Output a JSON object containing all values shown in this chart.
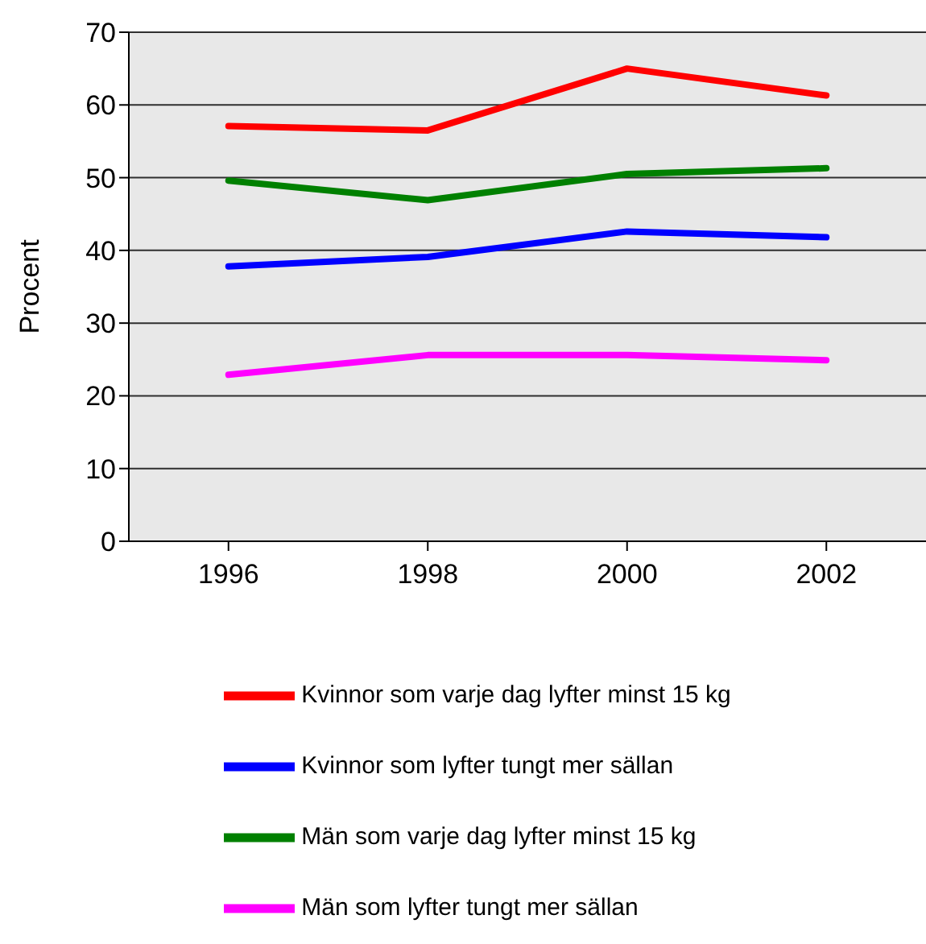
{
  "chart_data": {
    "type": "line",
    "ylabel": "Procent",
    "categories": [
      "1996",
      "1998",
      "2000",
      "2002"
    ],
    "series": [
      {
        "name": "Kvinnor som  varje dag lyfter minst 15 kg",
        "color": "#ff0000",
        "values": [
          57.1,
          56.5,
          65.0,
          61.3
        ]
      },
      {
        "name": "Kvinnor som lyfter tungt mer sällan",
        "color": "#0000ff",
        "values": [
          37.8,
          39.1,
          42.6,
          41.8
        ]
      },
      {
        "name": "Män som  varje dag lyfter minst 15 kg",
        "color": "#008000",
        "values": [
          49.6,
          46.9,
          50.5,
          51.3
        ]
      },
      {
        "name": "Män som lyfter tungt mer sällan",
        "color": "#ff00ff",
        "values": [
          22.9,
          25.6,
          25.6,
          24.9
        ]
      }
    ],
    "ylim": [
      0,
      70
    ],
    "yticks": [
      0,
      10,
      20,
      30,
      40,
      50,
      60,
      70
    ],
    "grid": "y",
    "legend": "bottom",
    "marker": "none",
    "line_style": "solid"
  }
}
